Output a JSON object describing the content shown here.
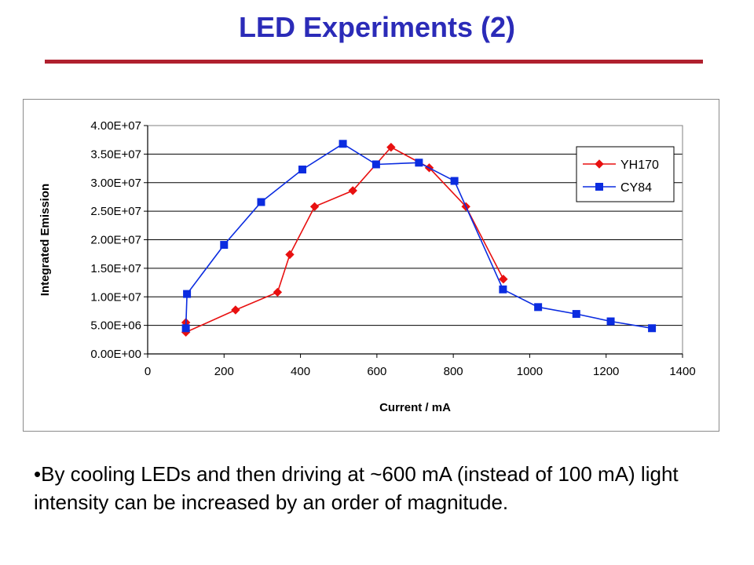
{
  "slide": {
    "title": "LED Experiments (2)",
    "bullet": "•By cooling LEDs and then driving at ~600 mA (instead of 100 mA) light intensity can be increased by an order of magnitude."
  },
  "colors": {
    "title": "#2b2bb8",
    "rule": "#b0202e",
    "series_yh170": "#e81010",
    "series_cy84": "#0b2ce0"
  },
  "chart_data": {
    "type": "line",
    "title": "",
    "xlabel": "Current / mA",
    "ylabel": "Integrated Emission",
    "xlim": [
      0,
      1400
    ],
    "ylim": [
      0,
      40000000
    ],
    "xticks": [
      0,
      200,
      400,
      600,
      800,
      1000,
      1200,
      1400
    ],
    "xtick_labels": [
      "0",
      "200",
      "400",
      "600",
      "800",
      "1000",
      "1200",
      "1400"
    ],
    "yticks": [
      0,
      5000000,
      10000000,
      15000000,
      20000000,
      25000000,
      30000000,
      35000000,
      40000000
    ],
    "ytick_labels": [
      "0.00E+00",
      "5.00E+06",
      "1.00E+07",
      "1.50E+07",
      "2.00E+07",
      "2.50E+07",
      "3.00E+07",
      "3.50E+07",
      "4.00E+07"
    ],
    "grid": "horizontal major gridlines",
    "legend": "top-right",
    "series": [
      {
        "name": "YH170",
        "marker": "diamond",
        "color": "#e81010",
        "x": [
          100,
          100,
          230,
          340,
          372,
          437,
          537,
          637,
          737,
          833,
          931
        ],
        "y": [
          5500000,
          3800000,
          7700000,
          10800000,
          17400000,
          25800000,
          28600000,
          36200000,
          32600000,
          25800000,
          13100000
        ]
      },
      {
        "name": "CY84",
        "marker": "square",
        "color": "#0b2ce0",
        "x": [
          100,
          103,
          200,
          297,
          405,
          511,
          598,
          710,
          803,
          930,
          1022,
          1122,
          1212,
          1320
        ],
        "y": [
          4500000,
          10500000,
          19100000,
          26600000,
          32300000,
          36800000,
          33200000,
          33500000,
          30300000,
          11300000,
          8200000,
          7000000,
          5700000,
          4500000
        ]
      }
    ]
  }
}
